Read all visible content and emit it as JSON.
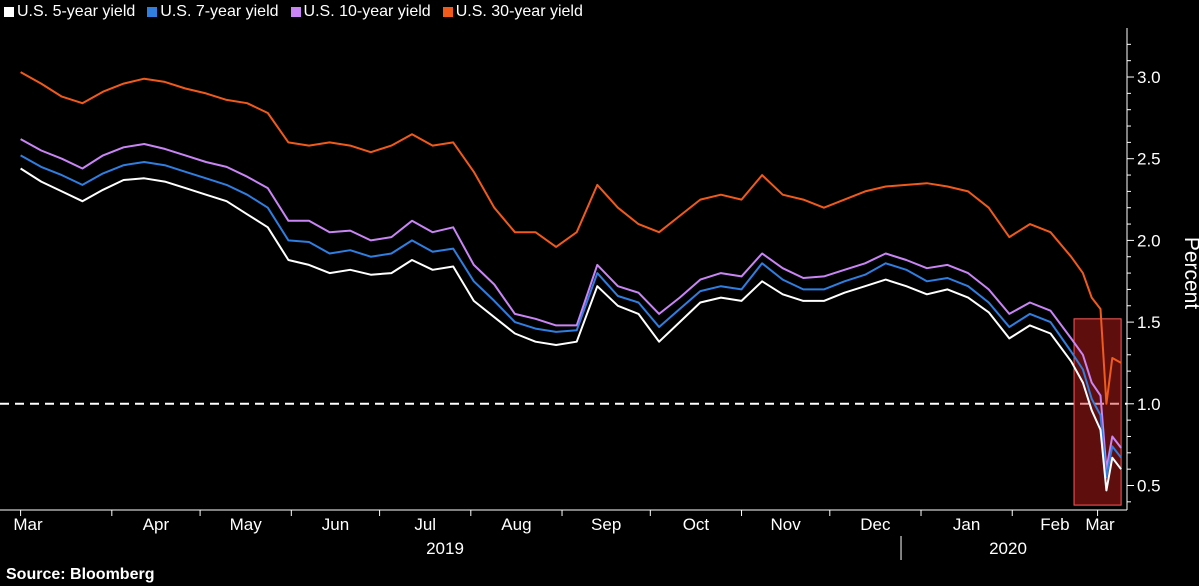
{
  "legend": [
    {
      "label": "U.S. 5-year yield",
      "color": "#ffffff"
    },
    {
      "label": "U.S. 7-year yield",
      "color": "#2f7ee0"
    },
    {
      "label": "U.S. 10-year yield",
      "color": "#c985f5"
    },
    {
      "label": "U.S. 30-year yield",
      "color": "#f05a1a"
    }
  ],
  "source": "Source:  Bloomberg",
  "chart_data": {
    "type": "line",
    "ylabel": "Percent",
    "ylim": [
      0.35,
      3.3
    ],
    "yticks": [
      0.5,
      1.0,
      1.5,
      2.0,
      2.5,
      3.0
    ],
    "ytick_labels": [
      "0.5",
      "1.0",
      "1.5",
      "2.0",
      "2.5",
      "3.0"
    ],
    "x_months": [
      "Mar",
      "Apr",
      "May",
      "Jun",
      "Jul",
      "Aug",
      "Sep",
      "Oct",
      "Nov",
      "Dec",
      "Jan",
      "Feb",
      "Mar"
    ],
    "x_years": [
      "2019",
      "2020"
    ],
    "reference_line": 1.0,
    "highlight": {
      "x_range": [
        "2020-02-22",
        "2020-03-09"
      ],
      "y_range": [
        0.38,
        1.52
      ],
      "color": "#d21e1e"
    },
    "x": [
      "2019-03-01",
      "2019-03-08",
      "2019-03-15",
      "2019-03-22",
      "2019-03-29",
      "2019-04-05",
      "2019-04-12",
      "2019-04-19",
      "2019-04-26",
      "2019-05-03",
      "2019-05-10",
      "2019-05-17",
      "2019-05-24",
      "2019-05-31",
      "2019-06-07",
      "2019-06-14",
      "2019-06-21",
      "2019-06-28",
      "2019-07-05",
      "2019-07-12",
      "2019-07-19",
      "2019-07-26",
      "2019-08-02",
      "2019-08-09",
      "2019-08-16",
      "2019-08-23",
      "2019-08-30",
      "2019-09-06",
      "2019-09-13",
      "2019-09-20",
      "2019-09-27",
      "2019-10-04",
      "2019-10-11",
      "2019-10-18",
      "2019-10-25",
      "2019-11-01",
      "2019-11-08",
      "2019-11-15",
      "2019-11-22",
      "2019-11-29",
      "2019-12-06",
      "2019-12-13",
      "2019-12-20",
      "2019-12-27",
      "2020-01-03",
      "2020-01-10",
      "2020-01-17",
      "2020-01-24",
      "2020-01-31",
      "2020-02-07",
      "2020-02-14",
      "2020-02-21",
      "2020-02-25",
      "2020-02-28",
      "2020-03-02",
      "2020-03-04",
      "2020-03-06",
      "2020-03-09"
    ],
    "series": [
      {
        "name": "U.S. 30-year yield",
        "color": "#f05a1a",
        "values": [
          3.03,
          2.96,
          2.88,
          2.84,
          2.91,
          2.96,
          2.99,
          2.97,
          2.93,
          2.9,
          2.86,
          2.84,
          2.78,
          2.6,
          2.58,
          2.6,
          2.58,
          2.54,
          2.58,
          2.65,
          2.58,
          2.6,
          2.42,
          2.2,
          2.05,
          2.05,
          1.96,
          2.05,
          2.34,
          2.2,
          2.1,
          2.05,
          2.15,
          2.25,
          2.28,
          2.25,
          2.4,
          2.28,
          2.25,
          2.2,
          2.25,
          2.3,
          2.33,
          2.34,
          2.35,
          2.33,
          2.3,
          2.2,
          2.02,
          2.1,
          2.05,
          1.9,
          1.8,
          1.65,
          1.58,
          1.0,
          1.28,
          1.25
        ]
      },
      {
        "name": "U.S. 10-year yield",
        "color": "#c985f5",
        "values": [
          2.62,
          2.55,
          2.5,
          2.44,
          2.52,
          2.57,
          2.59,
          2.56,
          2.52,
          2.48,
          2.45,
          2.39,
          2.32,
          2.12,
          2.12,
          2.05,
          2.06,
          2.0,
          2.02,
          2.12,
          2.05,
          2.08,
          1.85,
          1.73,
          1.55,
          1.52,
          1.48,
          1.48,
          1.85,
          1.72,
          1.68,
          1.55,
          1.65,
          1.76,
          1.8,
          1.78,
          1.92,
          1.83,
          1.77,
          1.78,
          1.82,
          1.86,
          1.92,
          1.88,
          1.83,
          1.85,
          1.8,
          1.7,
          1.55,
          1.62,
          1.57,
          1.4,
          1.3,
          1.13,
          1.05,
          0.6,
          0.8,
          0.73
        ]
      },
      {
        "name": "U.S. 7-year yield",
        "color": "#2f7ee0",
        "values": [
          2.52,
          2.45,
          2.4,
          2.34,
          2.41,
          2.46,
          2.48,
          2.46,
          2.42,
          2.38,
          2.34,
          2.28,
          2.2,
          2.0,
          1.99,
          1.92,
          1.94,
          1.9,
          1.92,
          2.0,
          1.93,
          1.95,
          1.75,
          1.63,
          1.5,
          1.46,
          1.44,
          1.45,
          1.8,
          1.66,
          1.62,
          1.47,
          1.58,
          1.69,
          1.72,
          1.7,
          1.86,
          1.76,
          1.7,
          1.7,
          1.75,
          1.79,
          1.86,
          1.82,
          1.75,
          1.77,
          1.72,
          1.62,
          1.47,
          1.55,
          1.5,
          1.32,
          1.21,
          1.03,
          0.93,
          0.55,
          0.74,
          0.67
        ]
      },
      {
        "name": "U.S. 5-year yield",
        "color": "#ffffff",
        "values": [
          2.44,
          2.36,
          2.3,
          2.24,
          2.31,
          2.37,
          2.38,
          2.36,
          2.32,
          2.28,
          2.24,
          2.16,
          2.08,
          1.88,
          1.85,
          1.8,
          1.82,
          1.79,
          1.8,
          1.88,
          1.82,
          1.84,
          1.63,
          1.53,
          1.43,
          1.38,
          1.36,
          1.38,
          1.72,
          1.6,
          1.55,
          1.38,
          1.5,
          1.62,
          1.65,
          1.63,
          1.75,
          1.67,
          1.63,
          1.63,
          1.68,
          1.72,
          1.76,
          1.72,
          1.67,
          1.7,
          1.65,
          1.56,
          1.4,
          1.48,
          1.43,
          1.26,
          1.13,
          0.96,
          0.84,
          0.47,
          0.67,
          0.6
        ]
      }
    ]
  }
}
